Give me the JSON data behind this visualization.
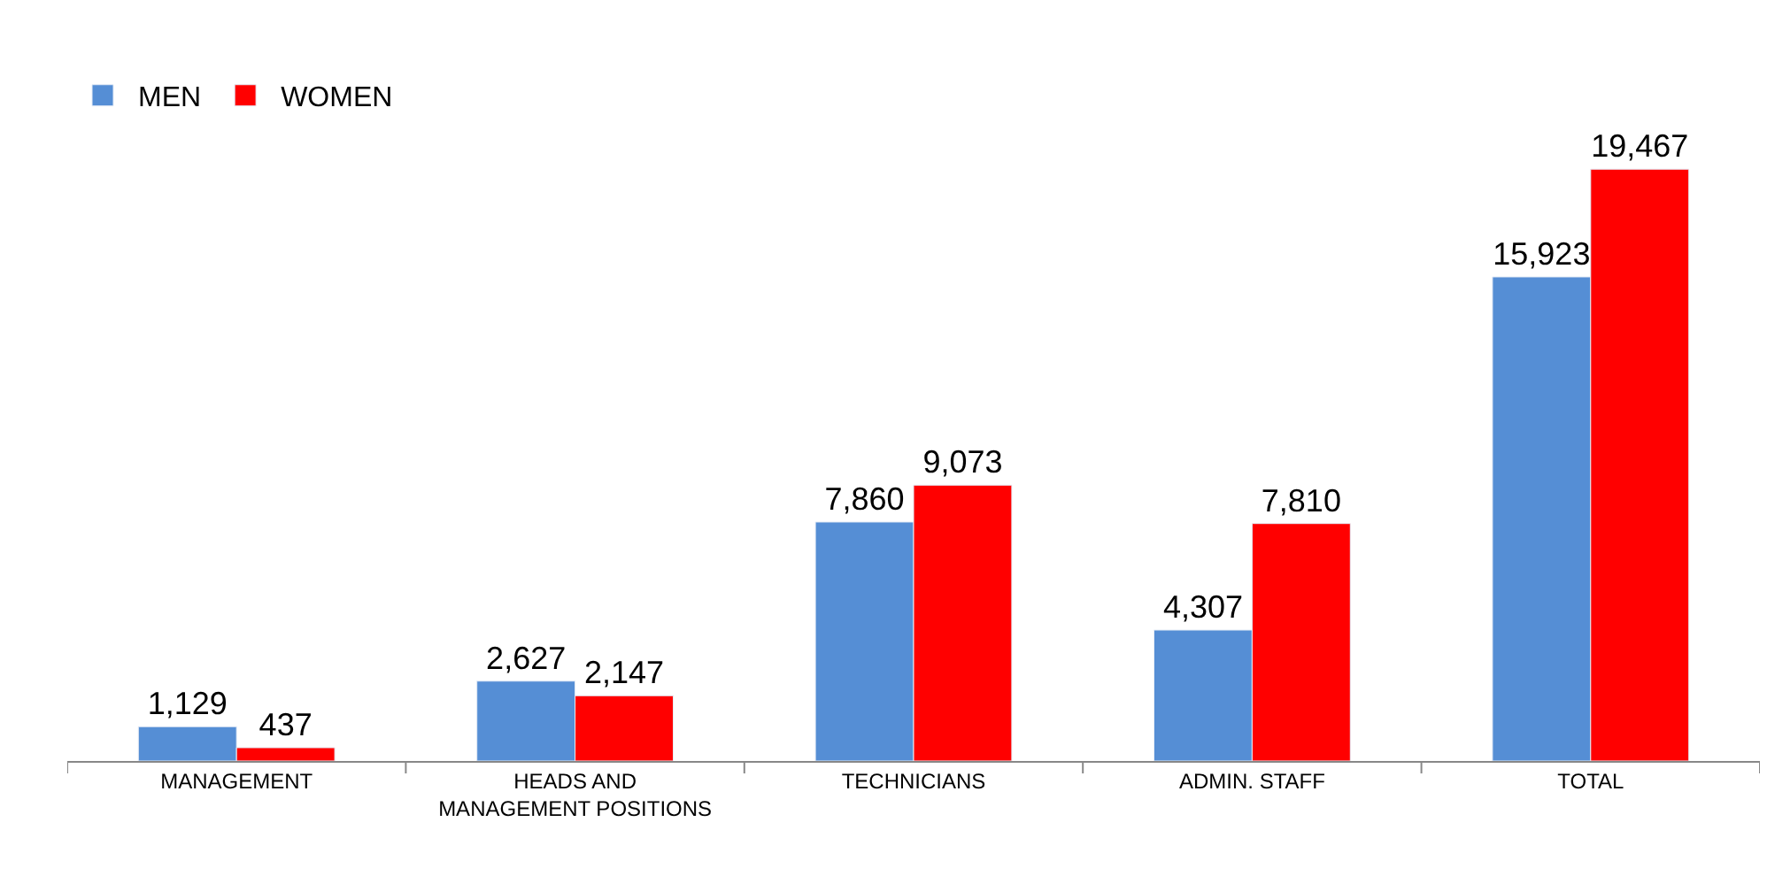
{
  "chart_data": {
    "type": "bar",
    "categories": [
      "MANAGEMENT",
      "HEADS AND\nMANAGEMENT POSITIONS",
      "TECHNICIANS",
      "ADMIN. STAFF",
      "TOTAL"
    ],
    "series": [
      {
        "name": "MEN",
        "color": "#558ed5",
        "values": [
          1129,
          2627,
          7860,
          4307,
          15923
        ],
        "value_labels": [
          "1,129",
          "2,627",
          "7,860",
          "4,307",
          "15,923"
        ]
      },
      {
        "name": "WOMEN",
        "color": "#ff0000",
        "values": [
          437,
          2147,
          9073,
          7810,
          19467
        ],
        "value_labels": [
          "437",
          "2,147",
          "9,073",
          "7,810",
          "19,467"
        ]
      }
    ],
    "tick_labels": "x",
    "legend": "top left"
  }
}
